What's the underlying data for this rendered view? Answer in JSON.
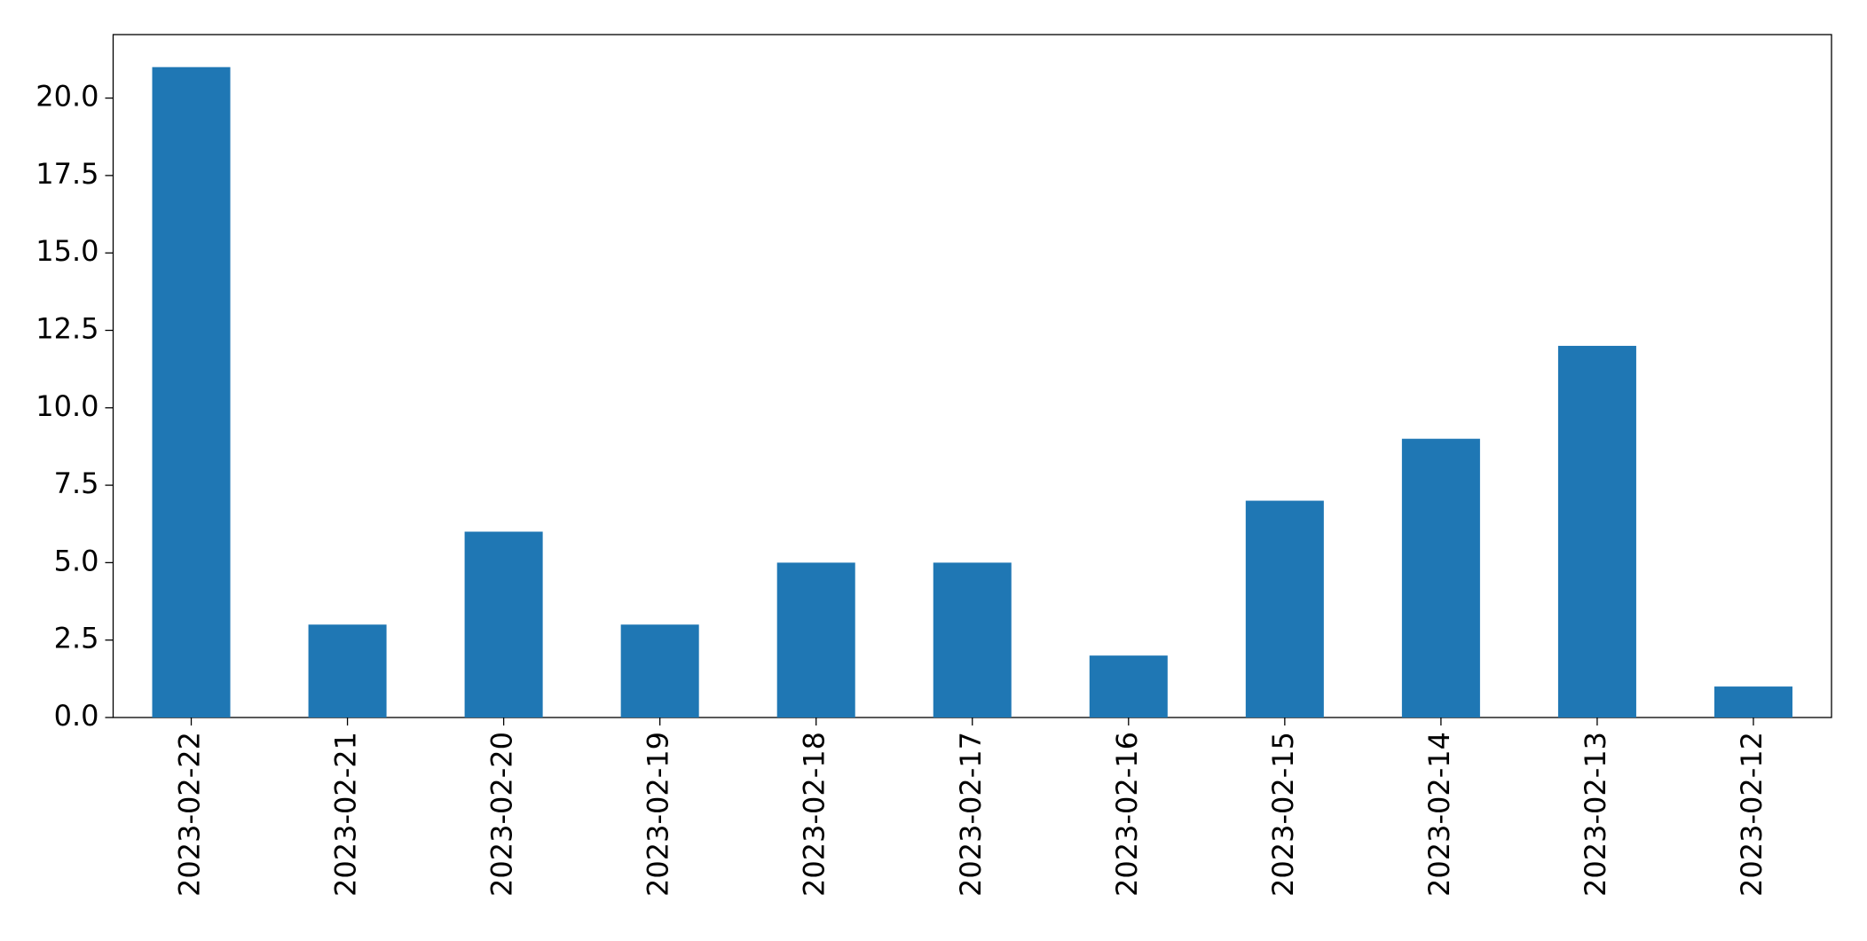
{
  "chart_data": {
    "type": "bar",
    "categories": [
      "2023-02-22",
      "2023-02-21",
      "2023-02-20",
      "2023-02-19",
      "2023-02-18",
      "2023-02-17",
      "2023-02-16",
      "2023-02-15",
      "2023-02-14",
      "2023-02-13",
      "2023-02-12"
    ],
    "values": [
      21,
      3,
      6,
      3,
      5,
      5,
      2,
      7,
      9,
      12,
      1
    ],
    "color": "#1f77b4",
    "ylim": [
      0,
      22.05
    ],
    "yticks": [
      {
        "value": 0,
        "label": "0.0"
      },
      2.5,
      {
        "value": 5,
        "label": "5.0"
      },
      7.5,
      {
        "value": 10,
        "label": "10.0"
      },
      12.5,
      {
        "value": 15,
        "label": "15.0"
      },
      17.5,
      {
        "value": 20,
        "label": "20.0"
      }
    ],
    "grid": false
  }
}
